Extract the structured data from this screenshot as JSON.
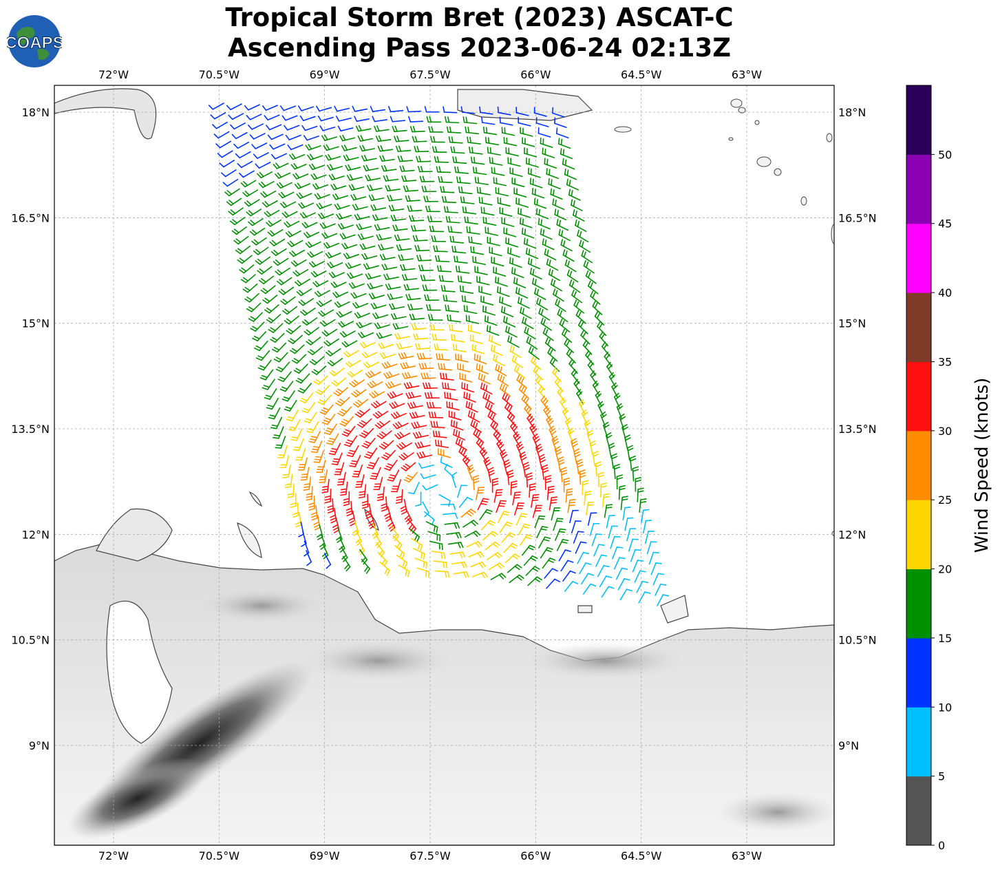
{
  "title": {
    "line1": "Tropical Storm Bret (2023) ASCAT-C",
    "line2": "Ascending Pass 2023-06-24 02:13Z"
  },
  "logo": {
    "text": "COAPS",
    "icon": "globe-icon"
  },
  "map": {
    "lon_range": [
      -72.5,
      -61.5
    ],
    "lat_range": [
      7.8,
      18.4
    ],
    "lon_ticks": [
      "72°W",
      "70.5°W",
      "69°W",
      "67.5°W",
      "66°W",
      "64.5°W",
      "63°W"
    ],
    "lat_ticks": [
      "18°N",
      "16.5°N",
      "15°N",
      "13.5°N",
      "12°N",
      "10.5°N",
      "9°N"
    ],
    "gridlines": true,
    "storm_center_approx": [
      -67.35,
      12.6
    ]
  },
  "colorbar": {
    "label": "Wind Speed (knots)",
    "ticks": [
      "0",
      "5",
      "10",
      "15",
      "20",
      "25",
      "30",
      "35",
      "40",
      "45",
      "50"
    ],
    "colors": [
      "#555555",
      "#00bfff",
      "#0033ff",
      "#009000",
      "#ffd700",
      "#ff8c00",
      "#ff1010",
      "#7f3b27",
      "#ff00ff",
      "#8b00b2",
      "#2a0058"
    ]
  }
}
